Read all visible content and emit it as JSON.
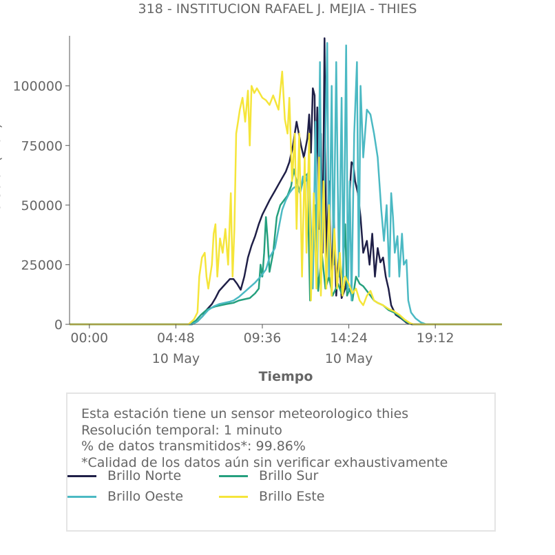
{
  "chart_data": {
    "type": "line",
    "title": "318 - INSTITUCION RAFAEL J. MEJIA - THIES",
    "xlabel": "Tiempo",
    "ylabel": "Brillo Solar (Klux)",
    "x_range_hours": [
      -1.1,
      22.9
    ],
    "ylim": [
      0,
      121000
    ],
    "yticks": [
      0,
      25000,
      50000,
      75000,
      100000
    ],
    "ytick_labels": [
      "0",
      "25000",
      "50000",
      "75000",
      "100000"
    ],
    "xticks": [
      {
        "t": 0,
        "label": "00:00",
        "sublabel": ""
      },
      {
        "t": 4.8,
        "label": "04:48",
        "sublabel": "10 May"
      },
      {
        "t": 9.6,
        "label": "09:36",
        "sublabel": ""
      },
      {
        "t": 14.4,
        "label": "14:24",
        "sublabel": "10 May"
      },
      {
        "t": 19.2,
        "label": "19:12",
        "sublabel": ""
      }
    ],
    "grid": false,
    "legend_placement": "bottom",
    "series": [
      {
        "name": "Brillo Norte",
        "color": "#1f1f47",
        "points": [
          [
            -1.1,
            0
          ],
          [
            5.7,
            0
          ],
          [
            6.0,
            1200
          ],
          [
            6.3,
            3500
          ],
          [
            6.5,
            6000
          ],
          [
            6.8,
            8500
          ],
          [
            7.0,
            11000
          ],
          [
            7.2,
            14000
          ],
          [
            7.5,
            16500
          ],
          [
            7.8,
            19000
          ],
          [
            8.0,
            19000
          ],
          [
            8.2,
            17000
          ],
          [
            8.4,
            14500
          ],
          [
            8.6,
            20000
          ],
          [
            8.8,
            28000
          ],
          [
            9.0,
            33000
          ],
          [
            9.2,
            37000
          ],
          [
            9.4,
            42000
          ],
          [
            9.6,
            46000
          ],
          [
            9.8,
            49000
          ],
          [
            10.0,
            52000
          ],
          [
            10.3,
            56000
          ],
          [
            10.6,
            60000
          ],
          [
            10.9,
            64000
          ],
          [
            11.1,
            68000
          ],
          [
            11.3,
            75000
          ],
          [
            11.5,
            85000
          ],
          [
            11.6,
            81000
          ],
          [
            11.75,
            75000
          ],
          [
            11.9,
            70000
          ],
          [
            12.1,
            78000
          ],
          [
            12.2,
            88000
          ],
          [
            12.3,
            72000
          ],
          [
            12.4,
            99000
          ],
          [
            12.5,
            96000
          ],
          [
            12.55,
            60000
          ],
          [
            12.65,
            91000
          ],
          [
            12.75,
            40000
          ],
          [
            12.85,
            80000
          ],
          [
            12.95,
            30000
          ],
          [
            13.05,
            120000
          ],
          [
            13.15,
            25000
          ],
          [
            13.3,
            60000
          ],
          [
            13.45,
            12000
          ],
          [
            13.55,
            50000
          ],
          [
            13.7,
            12000
          ],
          [
            13.85,
            30000
          ],
          [
            14.0,
            11000
          ],
          [
            14.2,
            15000
          ],
          [
            14.35,
            22000
          ],
          [
            14.45,
            55000
          ],
          [
            14.55,
            68000
          ],
          [
            14.65,
            67000
          ],
          [
            14.75,
            60000
          ],
          [
            14.9,
            55000
          ],
          [
            15.05,
            45000
          ],
          [
            15.2,
            30000
          ],
          [
            15.4,
            35000
          ],
          [
            15.55,
            25000
          ],
          [
            15.7,
            38000
          ],
          [
            15.85,
            20000
          ],
          [
            16.0,
            32000
          ],
          [
            16.15,
            26000
          ],
          [
            16.3,
            28000
          ],
          [
            16.45,
            20000
          ],
          [
            16.6,
            15000
          ],
          [
            16.75,
            8000
          ],
          [
            17.0,
            4000
          ],
          [
            17.3,
            2500
          ],
          [
            17.6,
            700
          ],
          [
            17.9,
            0
          ],
          [
            22.9,
            0
          ]
        ]
      },
      {
        "name": "Brillo Sur",
        "color": "#25a07e",
        "points": [
          [
            -1.1,
            0
          ],
          [
            5.6,
            0
          ],
          [
            5.9,
            1500
          ],
          [
            6.2,
            4000
          ],
          [
            6.5,
            6000
          ],
          [
            6.8,
            7000
          ],
          [
            7.0,
            7500
          ],
          [
            7.3,
            8000
          ],
          [
            7.6,
            8500
          ],
          [
            8.0,
            9000
          ],
          [
            8.3,
            10000
          ],
          [
            8.6,
            10500
          ],
          [
            8.9,
            11000
          ],
          [
            9.2,
            13000
          ],
          [
            9.4,
            15000
          ],
          [
            9.5,
            25000
          ],
          [
            9.6,
            20000
          ],
          [
            9.7,
            30000
          ],
          [
            9.8,
            45000
          ],
          [
            9.9,
            35000
          ],
          [
            10.0,
            22000
          ],
          [
            10.2,
            30000
          ],
          [
            10.4,
            45000
          ],
          [
            10.6,
            50000
          ],
          [
            10.8,
            52000
          ],
          [
            11.0,
            54000
          ],
          [
            11.2,
            58000
          ],
          [
            11.35,
            65000
          ],
          [
            11.5,
            60000
          ],
          [
            11.7,
            55000
          ],
          [
            11.9,
            62000
          ],
          [
            12.1,
            63000
          ],
          [
            12.25,
            10000
          ],
          [
            12.35,
            20000
          ],
          [
            12.55,
            50000
          ],
          [
            12.7,
            14000
          ],
          [
            12.9,
            30000
          ],
          [
            13.1,
            15000
          ],
          [
            13.3,
            20000
          ],
          [
            13.5,
            12000
          ],
          [
            13.8,
            17000
          ],
          [
            14.0,
            13000
          ],
          [
            14.2,
            42000
          ],
          [
            14.3,
            12000
          ],
          [
            14.45,
            15000
          ],
          [
            14.6,
            10000
          ],
          [
            14.8,
            20000
          ],
          [
            15.0,
            17000
          ],
          [
            15.2,
            16000
          ],
          [
            15.4,
            14000
          ],
          [
            15.6,
            12000
          ],
          [
            15.8,
            10000
          ],
          [
            16.0,
            9000
          ],
          [
            16.3,
            8000
          ],
          [
            16.6,
            6000
          ],
          [
            16.9,
            5000
          ],
          [
            17.2,
            3500
          ],
          [
            17.5,
            1500
          ],
          [
            17.8,
            300
          ],
          [
            18.0,
            0
          ],
          [
            22.9,
            0
          ]
        ]
      },
      {
        "name": "Brillo Oeste",
        "color": "#4bb9c3",
        "points": [
          [
            -1.1,
            0
          ],
          [
            5.7,
            0
          ],
          [
            6.0,
            1200
          ],
          [
            6.3,
            3500
          ],
          [
            6.6,
            6000
          ],
          [
            6.9,
            7500
          ],
          [
            7.2,
            8500
          ],
          [
            7.5,
            9000
          ],
          [
            7.8,
            9500
          ],
          [
            8.0,
            10000
          ],
          [
            8.3,
            11500
          ],
          [
            8.6,
            13500
          ],
          [
            8.9,
            15500
          ],
          [
            9.2,
            17500
          ],
          [
            9.5,
            20000
          ],
          [
            9.8,
            23000
          ],
          [
            10.0,
            28000
          ],
          [
            10.3,
            32000
          ],
          [
            10.5,
            40000
          ],
          [
            10.7,
            48000
          ],
          [
            10.9,
            52000
          ],
          [
            11.1,
            55000
          ],
          [
            11.3,
            57000
          ],
          [
            11.5,
            58000
          ],
          [
            11.7,
            55000
          ],
          [
            11.85,
            62000
          ],
          [
            12.0,
            60000
          ],
          [
            12.2,
            65000
          ],
          [
            12.4,
            15000
          ],
          [
            12.55,
            85000
          ],
          [
            12.65,
            20000
          ],
          [
            12.8,
            110000
          ],
          [
            12.9,
            30000
          ],
          [
            13.05,
            60000
          ],
          [
            13.2,
            118000
          ],
          [
            13.3,
            20000
          ],
          [
            13.45,
            100000
          ],
          [
            13.55,
            25000
          ],
          [
            13.7,
            110000
          ],
          [
            13.85,
            20000
          ],
          [
            14.0,
            95000
          ],
          [
            14.1,
            20000
          ],
          [
            14.25,
            117000
          ],
          [
            14.35,
            14000
          ],
          [
            14.45,
            60000
          ],
          [
            14.55,
            10000
          ],
          [
            14.7,
            80000
          ],
          [
            14.85,
            110000
          ],
          [
            14.95,
            20000
          ],
          [
            15.05,
            100000
          ],
          [
            15.2,
            70000
          ],
          [
            15.4,
            90000
          ],
          [
            15.6,
            88000
          ],
          [
            15.8,
            80000
          ],
          [
            16.0,
            70000
          ],
          [
            16.2,
            48000
          ],
          [
            16.35,
            35000
          ],
          [
            16.5,
            50000
          ],
          [
            16.65,
            20000
          ],
          [
            16.75,
            55000
          ],
          [
            16.85,
            45000
          ],
          [
            16.95,
            30000
          ],
          [
            17.1,
            37000
          ],
          [
            17.2,
            20000
          ],
          [
            17.35,
            38000
          ],
          [
            17.45,
            25000
          ],
          [
            17.6,
            27000
          ],
          [
            17.7,
            10000
          ],
          [
            17.85,
            5000
          ],
          [
            18.1,
            2500
          ],
          [
            18.4,
            800
          ],
          [
            18.7,
            0
          ],
          [
            22.9,
            0
          ]
        ]
      },
      {
        "name": "Brillo Este",
        "color": "#f5e53a",
        "points": [
          [
            -1.1,
            0
          ],
          [
            5.5,
            0
          ],
          [
            5.8,
            2000
          ],
          [
            6.0,
            5000
          ],
          [
            6.1,
            20000
          ],
          [
            6.25,
            28000
          ],
          [
            6.4,
            30000
          ],
          [
            6.5,
            20000
          ],
          [
            6.6,
            15000
          ],
          [
            6.8,
            25000
          ],
          [
            6.9,
            38000
          ],
          [
            7.0,
            42000
          ],
          [
            7.1,
            20000
          ],
          [
            7.25,
            36000
          ],
          [
            7.4,
            30000
          ],
          [
            7.55,
            40000
          ],
          [
            7.7,
            25000
          ],
          [
            7.85,
            55000
          ],
          [
            7.95,
            20000
          ],
          [
            8.05,
            40000
          ],
          [
            8.15,
            80000
          ],
          [
            8.25,
            85000
          ],
          [
            8.35,
            90000
          ],
          [
            8.5,
            95000
          ],
          [
            8.65,
            85000
          ],
          [
            8.8,
            98000
          ],
          [
            8.9,
            75000
          ],
          [
            9.0,
            100000
          ],
          [
            9.15,
            97000
          ],
          [
            9.3,
            99000
          ],
          [
            9.45,
            97000
          ],
          [
            9.6,
            95000
          ],
          [
            9.8,
            94000
          ],
          [
            10.0,
            92000
          ],
          [
            10.2,
            96000
          ],
          [
            10.35,
            93000
          ],
          [
            10.5,
            90000
          ],
          [
            10.7,
            106000
          ],
          [
            10.85,
            86000
          ],
          [
            11.0,
            80000
          ],
          [
            11.1,
            95000
          ],
          [
            11.25,
            60000
          ],
          [
            11.4,
            80000
          ],
          [
            11.5,
            40000
          ],
          [
            11.65,
            80000
          ],
          [
            11.8,
            20000
          ],
          [
            11.95,
            70000
          ],
          [
            12.05,
            30000
          ],
          [
            12.2,
            80000
          ],
          [
            12.3,
            10000
          ],
          [
            12.45,
            55000
          ],
          [
            12.6,
            15000
          ],
          [
            12.75,
            70000
          ],
          [
            12.85,
            12000
          ],
          [
            13.0,
            60000
          ],
          [
            13.15,
            15000
          ],
          [
            13.3,
            50000
          ],
          [
            13.45,
            12000
          ],
          [
            13.6,
            40000
          ],
          [
            13.75,
            15000
          ],
          [
            13.9,
            30000
          ],
          [
            14.05,
            12000
          ],
          [
            14.2,
            20000
          ],
          [
            14.4,
            17000
          ],
          [
            14.6,
            13000
          ],
          [
            14.8,
            15000
          ],
          [
            15.0,
            10000
          ],
          [
            15.2,
            8000
          ],
          [
            15.4,
            12000
          ],
          [
            15.6,
            14000
          ],
          [
            15.8,
            10000
          ],
          [
            16.0,
            9000
          ],
          [
            16.3,
            8000
          ],
          [
            16.6,
            6500
          ],
          [
            16.9,
            5500
          ],
          [
            17.2,
            4000
          ],
          [
            17.5,
            2000
          ],
          [
            17.8,
            500
          ],
          [
            18.0,
            0
          ],
          [
            22.9,
            0
          ]
        ]
      }
    ]
  },
  "info": {
    "lines": [
      "Esta estación tiene un sensor meteorologico thies",
      "Resolución temporal: 1 minuto",
      "% de datos transmitidos*: 99.86%",
      "*Calidad de los datos aún sin verificar exhaustivamente"
    ]
  },
  "legend": [
    {
      "label": "Brillo Norte",
      "color": "#1f1f47"
    },
    {
      "label": "Brillo Sur",
      "color": "#25a07e"
    },
    {
      "label": "Brillo Oeste",
      "color": "#4bb9c3"
    },
    {
      "label": "Brillo Este",
      "color": "#f5e53a"
    }
  ]
}
